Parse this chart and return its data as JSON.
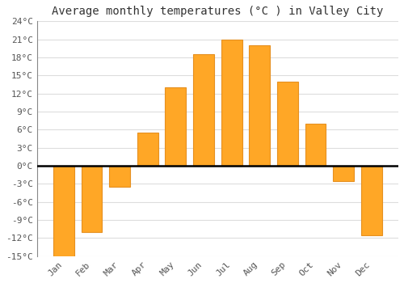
{
  "months": [
    "Jan",
    "Feb",
    "Mar",
    "Apr",
    "May",
    "Jun",
    "Jul",
    "Aug",
    "Sep",
    "Oct",
    "Nov",
    "Dec"
  ],
  "values": [
    -15,
    -11,
    -3.5,
    5.5,
    13,
    18.5,
    21,
    20,
    14,
    7,
    -2.5,
    -11.5
  ],
  "bar_color": "#FFA726",
  "bar_edge_color": "#E69020",
  "title": "Average monthly temperatures (°C ) in Valley City",
  "ylim": [
    -15,
    24
  ],
  "yticks": [
    -15,
    -12,
    -9,
    -6,
    -3,
    0,
    3,
    6,
    9,
    12,
    15,
    18,
    21,
    24
  ],
  "background_color": "#FFFFFF",
  "grid_color": "#DDDDDD",
  "zero_line_color": "#000000",
  "title_fontsize": 10,
  "tick_fontsize": 8,
  "font_family": "monospace"
}
